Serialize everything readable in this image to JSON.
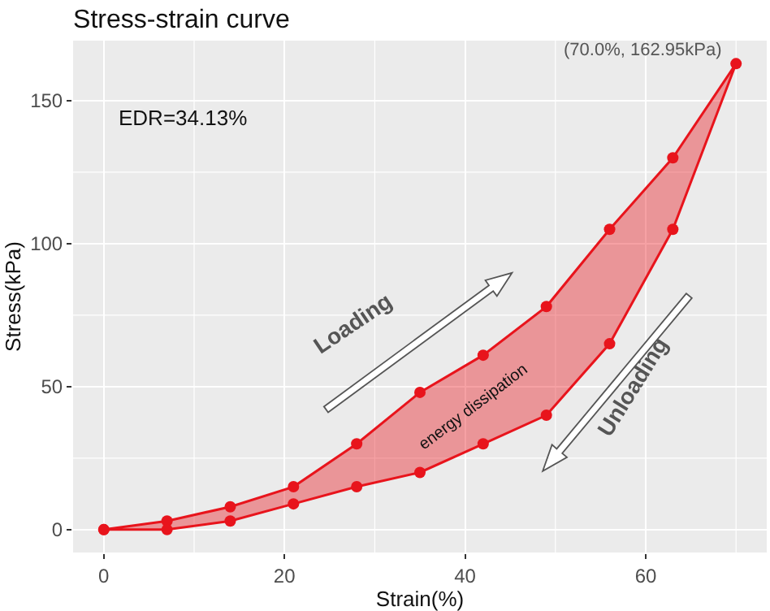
{
  "chart_data": {
    "type": "area",
    "title": "Stress-strain curve",
    "xlabel": "Strain(%)",
    "ylabel": "Stress(kPa)",
    "x": [
      0,
      7,
      14,
      21,
      28,
      35,
      42,
      49,
      56,
      63,
      70,
      63,
      56,
      49,
      42,
      35,
      28,
      21,
      14,
      7,
      0
    ],
    "series": [
      {
        "color": "#e8141c",
        "values": [
          0,
          3,
          8,
          15,
          30,
          48,
          61,
          78,
          105,
          130,
          162.95,
          105,
          65,
          40,
          30,
          20,
          15,
          9,
          3,
          0,
          0
        ]
      }
    ],
    "xlim": [
      -3.4,
      73.4
    ],
    "ylim": [
      -8,
      171
    ],
    "xticks": [
      0,
      20,
      40,
      60
    ],
    "yticks": [
      0,
      50,
      100,
      150
    ],
    "grid": true,
    "marker": "circle",
    "line_style": "solid",
    "annotations": [
      "EDR=34.13%",
      {
        "text": "(70.0%, 162.95kPa)",
        "x": 70,
        "y": 162.95
      },
      "Loading",
      "Unloading",
      "energy dissipation"
    ]
  }
}
